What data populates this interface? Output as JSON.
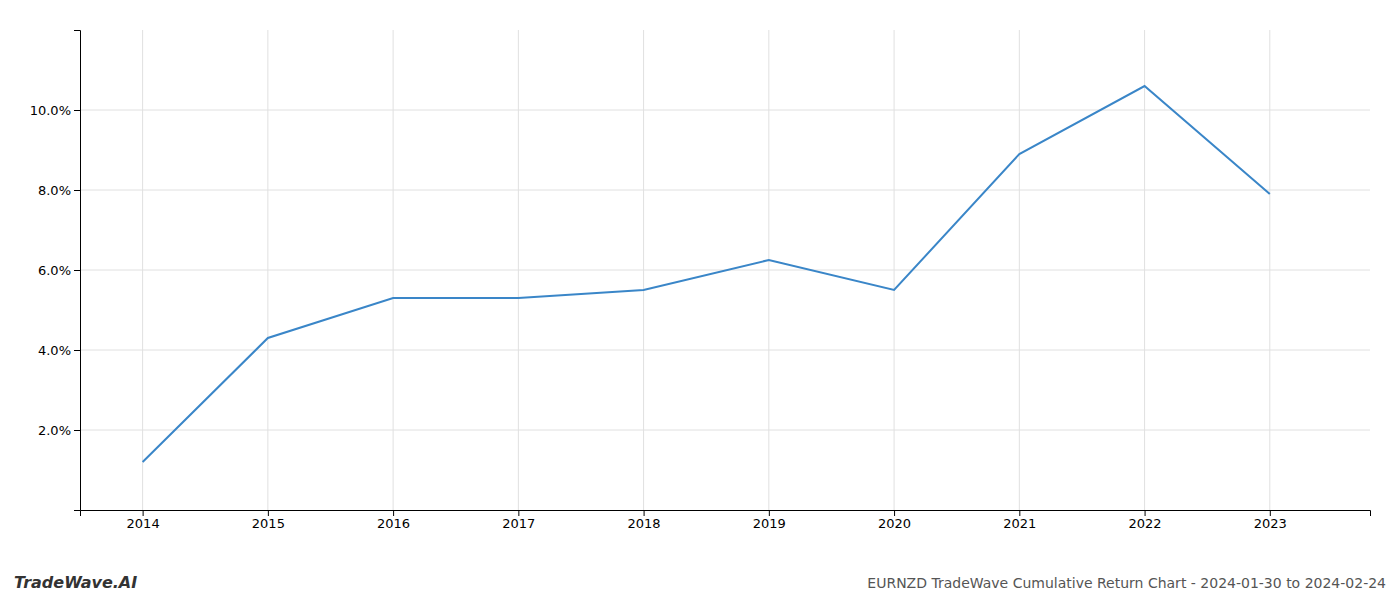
{
  "chart_data": {
    "type": "line",
    "x": [
      2014,
      2015,
      2016,
      2017,
      2018,
      2019,
      2020,
      2021,
      2022,
      2023
    ],
    "values": [
      1.2,
      4.3,
      5.3,
      5.3,
      5.5,
      6.25,
      5.5,
      8.9,
      10.6,
      7.9
    ],
    "color": "#3a86c8",
    "xlim": [
      2013.5,
      2023.8
    ],
    "ylim": [
      0.0,
      12.0
    ],
    "xticks": [
      2014,
      2015,
      2016,
      2017,
      2018,
      2019,
      2020,
      2021,
      2022,
      2023
    ],
    "yticks": [
      {
        "value": 2.0,
        "label": "2.0%"
      },
      {
        "value": 4.0,
        "label": "4.0%"
      },
      {
        "value": 6.0,
        "label": "6.0%"
      },
      {
        "value": 8.0,
        "label": "8.0%"
      },
      {
        "value": 10.0,
        "label": "10.0%"
      }
    ],
    "grid": true,
    "annotations": [
      "TradeWave.AI",
      "EURNZD TradeWave Cumulative Return Chart - 2024-01-30 to 2024-02-24"
    ]
  }
}
